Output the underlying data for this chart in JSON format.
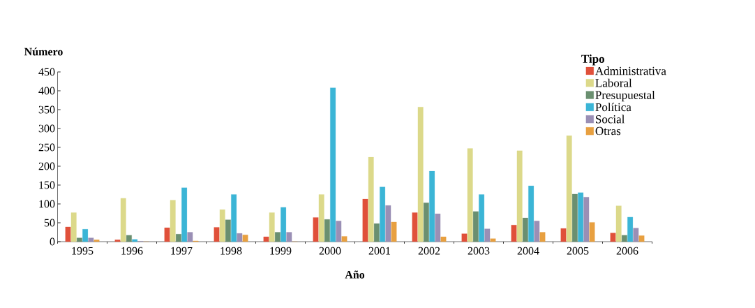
{
  "chart_data": {
    "type": "bar",
    "xlabel": "Año",
    "ylabel": "Número",
    "legend_title": "Tipo",
    "legend": "top right",
    "categories": [
      "1995",
      "1996",
      "1997",
      "1998",
      "1999",
      "2000",
      "2001",
      "2002",
      "2003",
      "2004",
      "2005",
      "2006"
    ],
    "ylim": [
      0,
      450
    ],
    "yticks": [
      0,
      50,
      100,
      150,
      200,
      250,
      300,
      350,
      400,
      450
    ],
    "series": [
      {
        "name": "Administrativa",
        "color": "#e0503a",
        "values": [
          39,
          5,
          37,
          38,
          13,
          64,
          113,
          77,
          21,
          44,
          35,
          23
        ]
      },
      {
        "name": "Laboral",
        "color": "#dcd98a",
        "values": [
          77,
          115,
          110,
          85,
          77,
          125,
          224,
          357,
          247,
          241,
          281,
          95
        ]
      },
      {
        "name": "Presupuestal",
        "color": "#6a8f70",
        "values": [
          10,
          17,
          20,
          58,
          25,
          59,
          48,
          103,
          80,
          63,
          126,
          17
        ]
      },
      {
        "name": "Política",
        "color": "#3bb5d6",
        "values": [
          33,
          6,
          143,
          125,
          91,
          408,
          145,
          187,
          125,
          148,
          130,
          65
        ]
      },
      {
        "name": "Social",
        "color": "#9a8fb5",
        "values": [
          10,
          1,
          25,
          22,
          25,
          55,
          96,
          74,
          34,
          55,
          118,
          36
        ]
      },
      {
        "name": "Otras",
        "color": "#e8a040",
        "values": [
          5,
          0,
          2,
          18,
          0,
          14,
          52,
          13,
          8,
          25,
          51,
          16
        ]
      }
    ]
  }
}
